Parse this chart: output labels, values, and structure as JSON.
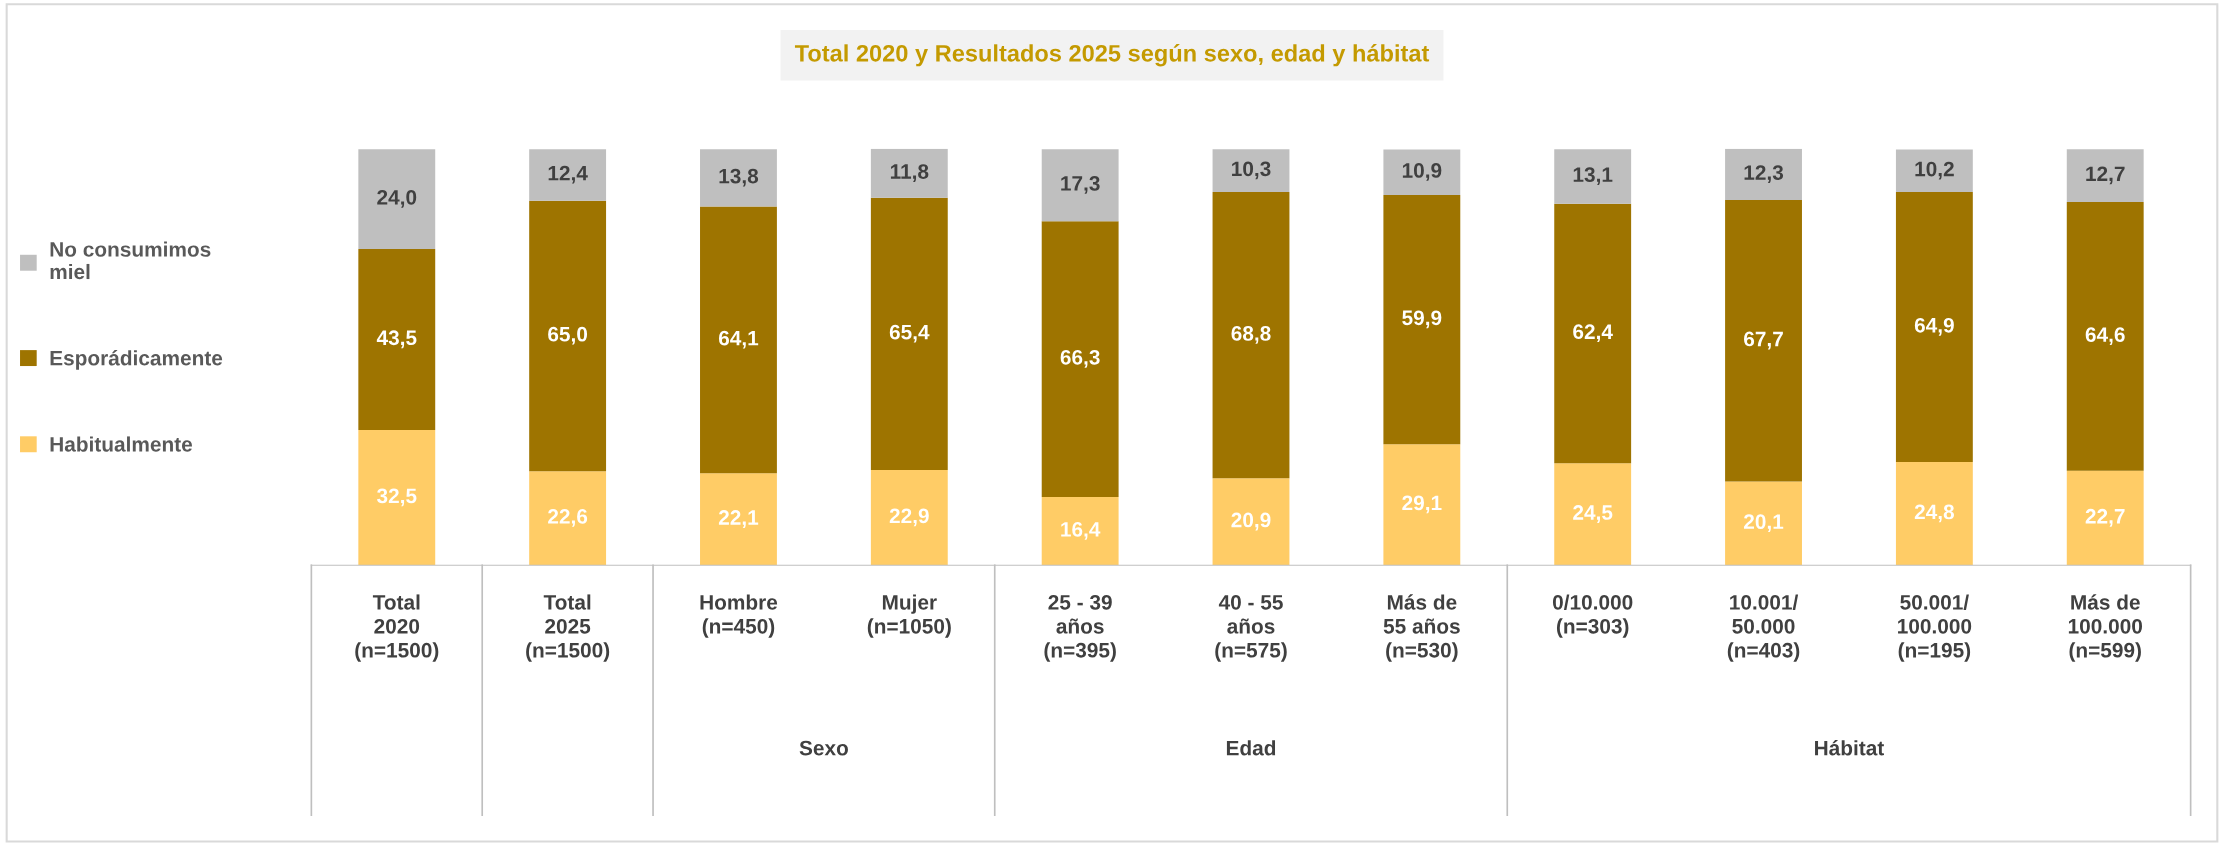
{
  "chart_data": {
    "type": "bar",
    "stacked": true,
    "legend": "left",
    "title": "Total 2020 y Resultados 2025 según sexo, edad y hábitat",
    "categories": [
      "Total\n2020\n(n=1500)",
      "Total\n2025\n(n=1500)",
      "Hombre\n(n=450)",
      "Mujer\n(n=1050)",
      "25 - 39\naños\n(n=395)",
      "40 - 55\naños\n(n=575)",
      "Más de\n55 años\n(n=530)",
      "0/10.000\n(n=303)",
      "10.001/\n50.000\n(n=403)",
      "50.001/\n100.000\n(n=195)",
      "Más de\n100.000\n(n=599)"
    ],
    "series": [
      {
        "name": "Habitualmente",
        "color": "#ffcc66",
        "values": [
          32.5,
          22.6,
          22.1,
          22.9,
          16.4,
          20.9,
          29.1,
          24.5,
          20.1,
          24.8,
          22.7
        ],
        "value_labels": [
          "32,5",
          "22,6",
          "22,1",
          "22,9",
          "16,4",
          "20,9",
          "29,1",
          "24,5",
          "20,1",
          "24,8",
          "22,7"
        ]
      },
      {
        "name": "Esporádicamente",
        "color": "#9e7400",
        "values": [
          43.5,
          65.0,
          64.1,
          65.4,
          66.3,
          68.8,
          59.9,
          62.4,
          67.7,
          64.9,
          64.6
        ],
        "value_labels": [
          "43,5",
          "65,0",
          "64,1",
          "65,4",
          "66,3",
          "68,8",
          "59,9",
          "62,4",
          "67,7",
          "64,9",
          "64,6"
        ]
      },
      {
        "name": "No consumimos\nmiel",
        "color": "#bfbfbf",
        "values": [
          24.0,
          12.4,
          13.8,
          11.8,
          17.3,
          10.3,
          10.9,
          13.1,
          12.3,
          10.2,
          12.7
        ],
        "value_labels": [
          "24,0",
          "12,4",
          "13,8",
          "11,8",
          "17,3",
          "10,3",
          "10,9",
          "13,1",
          "12,3",
          "10,2",
          "12,7"
        ]
      }
    ],
    "annotations": [
      "Sexo",
      "Edad",
      "Hábitat"
    ]
  }
}
